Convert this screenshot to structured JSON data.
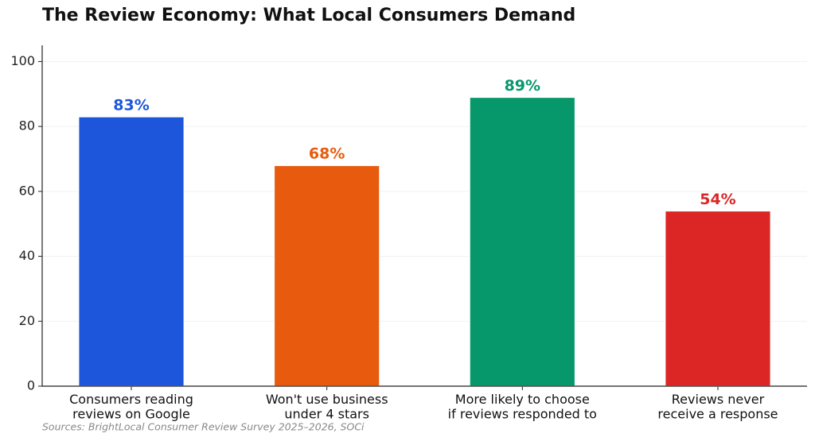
{
  "chart_data": {
    "type": "bar",
    "title": "The Review Economy: What Local Consumers Demand",
    "categories": [
      "Consumers reading\nreviews on Google",
      "Won't use business\nunder 4 stars",
      "More likely to choose\nif reviews responded to",
      "Reviews never\nreceive a response"
    ],
    "values": [
      83,
      68,
      89,
      54
    ],
    "value_labels": [
      "83%",
      "68%",
      "89%",
      "54%"
    ],
    "colors": [
      "#1d56db",
      "#e85b0e",
      "#06976a",
      "#dc2626"
    ],
    "ylim": [
      0,
      105
    ],
    "yticks": [
      0,
      20,
      40,
      60,
      80,
      100
    ],
    "grid": true,
    "source": "Sources: BrightLocal Consumer Review Survey 2025–2026, SOCi"
  }
}
